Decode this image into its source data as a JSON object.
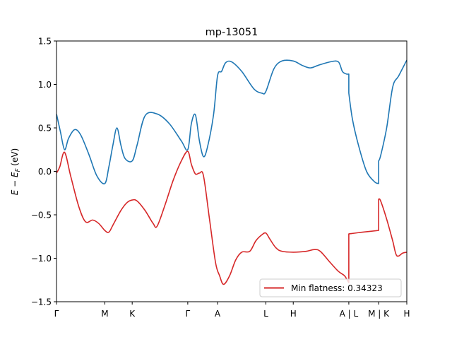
{
  "chart_data": {
    "type": "line",
    "title": "mp-13051",
    "ylabel": "E − E_F (eV)",
    "ylabel_parts": {
      "E": "E",
      "minus": " − ",
      "EF": "E",
      "sub": "F",
      "unit": " (eV)"
    },
    "ylim": [
      -1.5,
      1.5
    ],
    "xlim": [
      0,
      8.7
    ],
    "y_ticks": [
      -1.5,
      -1.0,
      -0.5,
      0.0,
      0.5,
      1.0,
      1.5
    ],
    "y_tick_labels": [
      "−1.5",
      "−1.0",
      "−0.5",
      "0.0",
      "0.5",
      "1.0",
      "1.5"
    ],
    "x_ticks": [
      {
        "x": 0.0,
        "label": "Γ"
      },
      {
        "x": 1.2,
        "label": "M"
      },
      {
        "x": 1.88,
        "label": "K"
      },
      {
        "x": 3.26,
        "label": "Γ"
      },
      {
        "x": 4.0,
        "label": "A"
      },
      {
        "x": 5.2,
        "label": "L"
      },
      {
        "x": 5.88,
        "label": "H"
      },
      {
        "x": 7.26,
        "label": "A | L"
      },
      {
        "x": 8.0,
        "label": "M | K"
      },
      {
        "x": 8.7,
        "label": "H"
      }
    ],
    "grid": false,
    "legend_position": "lower right",
    "series": [
      {
        "color": "#1f77b4",
        "segments": [
          [
            [
              0.0,
              0.66
            ],
            [
              0.1,
              0.45
            ],
            [
              0.2,
              0.25
            ],
            [
              0.3,
              0.38
            ],
            [
              0.45,
              0.48
            ],
            [
              0.6,
              0.42
            ],
            [
              0.8,
              0.2
            ],
            [
              1.0,
              -0.05
            ],
            [
              1.2,
              -0.14
            ],
            [
              1.3,
              0.05
            ],
            [
              1.4,
              0.3
            ],
            [
              1.5,
              0.5
            ],
            [
              1.6,
              0.3
            ],
            [
              1.7,
              0.15
            ],
            [
              1.88,
              0.12
            ],
            [
              2.0,
              0.3
            ],
            [
              2.2,
              0.64
            ],
            [
              2.5,
              0.66
            ],
            [
              2.8,
              0.55
            ],
            [
              3.1,
              0.35
            ],
            [
              3.26,
              0.25
            ],
            [
              3.35,
              0.55
            ],
            [
              3.45,
              0.65
            ],
            [
              3.55,
              0.35
            ],
            [
              3.65,
              0.17
            ],
            [
              3.75,
              0.28
            ],
            [
              3.9,
              0.65
            ],
            [
              4.0,
              1.1
            ],
            [
              4.1,
              1.15
            ],
            [
              4.2,
              1.25
            ],
            [
              4.35,
              1.26
            ],
            [
              4.6,
              1.15
            ],
            [
              4.9,
              0.95
            ],
            [
              5.1,
              0.9
            ],
            [
              5.2,
              0.92
            ],
            [
              5.4,
              1.18
            ],
            [
              5.6,
              1.27
            ],
            [
              5.88,
              1.27
            ],
            [
              6.1,
              1.22
            ],
            [
              6.3,
              1.19
            ],
            [
              6.5,
              1.22
            ],
            [
              6.8,
              1.26
            ],
            [
              7.0,
              1.26
            ],
            [
              7.1,
              1.15
            ],
            [
              7.2,
              1.12
            ],
            [
              7.26,
              1.12
            ],
            [
              7.26,
              0.9
            ],
            [
              7.35,
              0.6
            ],
            [
              7.5,
              0.3
            ],
            [
              7.7,
              0.0
            ],
            [
              7.9,
              -0.12
            ],
            [
              8.0,
              -0.14
            ],
            [
              8.0,
              0.12
            ],
            [
              8.05,
              0.18
            ],
            [
              8.2,
              0.5
            ],
            [
              8.35,
              0.97
            ],
            [
              8.5,
              1.1
            ],
            [
              8.7,
              1.28
            ]
          ]
        ]
      },
      {
        "name": "Min flatness: 0.34323",
        "color": "#d62728",
        "segments": [
          [
            [
              0.0,
              -0.02
            ],
            [
              0.08,
              0.05
            ],
            [
              0.2,
              0.22
            ],
            [
              0.35,
              -0.05
            ],
            [
              0.55,
              -0.4
            ],
            [
              0.72,
              -0.58
            ],
            [
              0.9,
              -0.56
            ],
            [
              1.05,
              -0.6
            ],
            [
              1.2,
              -0.68
            ],
            [
              1.3,
              -0.7
            ],
            [
              1.4,
              -0.62
            ],
            [
              1.6,
              -0.45
            ],
            [
              1.75,
              -0.36
            ],
            [
              1.88,
              -0.33
            ],
            [
              2.0,
              -0.34
            ],
            [
              2.2,
              -0.45
            ],
            [
              2.4,
              -0.6
            ],
            [
              2.5,
              -0.63
            ],
            [
              2.7,
              -0.38
            ],
            [
              2.9,
              -0.1
            ],
            [
              3.1,
              0.12
            ],
            [
              3.26,
              0.23
            ],
            [
              3.35,
              0.08
            ],
            [
              3.45,
              -0.03
            ],
            [
              3.55,
              -0.02
            ],
            [
              3.65,
              -0.05
            ],
            [
              3.8,
              -0.55
            ],
            [
              3.95,
              -1.05
            ],
            [
              4.05,
              -1.2
            ],
            [
              4.15,
              -1.3
            ],
            [
              4.3,
              -1.2
            ],
            [
              4.45,
              -1.02
            ],
            [
              4.6,
              -0.93
            ],
            [
              4.8,
              -0.92
            ],
            [
              4.95,
              -0.8
            ],
            [
              5.1,
              -0.73
            ],
            [
              5.2,
              -0.71
            ],
            [
              5.3,
              -0.78
            ],
            [
              5.45,
              -0.88
            ],
            [
              5.6,
              -0.92
            ],
            [
              5.88,
              -0.93
            ],
            [
              6.2,
              -0.92
            ],
            [
              6.4,
              -0.9
            ],
            [
              6.55,
              -0.92
            ],
            [
              6.8,
              -1.05
            ],
            [
              7.0,
              -1.15
            ],
            [
              7.15,
              -1.2
            ],
            [
              7.22,
              -1.25
            ],
            [
              7.26,
              -1.28
            ],
            [
              7.26,
              -0.72
            ],
            [
              7.6,
              -0.7
            ],
            [
              8.0,
              -0.68
            ],
            [
              8.0,
              -0.32
            ],
            [
              8.05,
              -0.34
            ],
            [
              8.2,
              -0.55
            ],
            [
              8.35,
              -0.8
            ],
            [
              8.45,
              -0.97
            ],
            [
              8.6,
              -0.94
            ],
            [
              8.7,
              -0.93
            ]
          ]
        ]
      }
    ]
  }
}
